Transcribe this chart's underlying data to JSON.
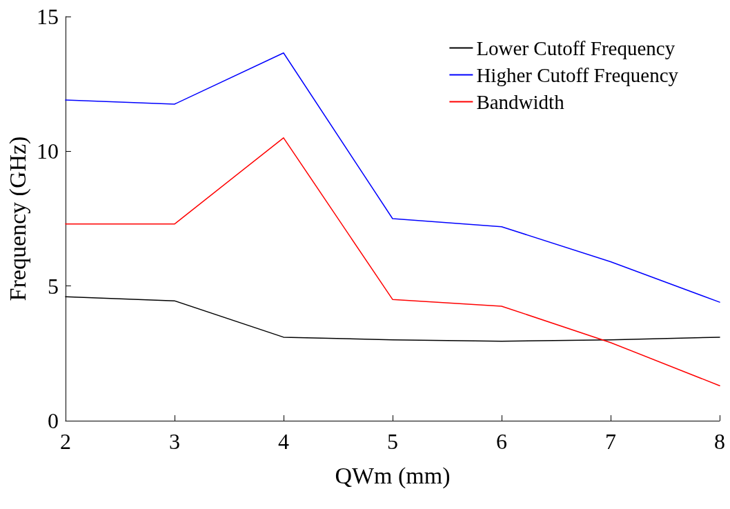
{
  "chart_data": {
    "type": "line",
    "xlabel": "QWm (mm)",
    "ylabel": "Frequency (GHz)",
    "x": [
      2,
      3,
      4,
      5,
      6,
      7,
      8
    ],
    "series": [
      {
        "name": "Lower Cutoff Frequency",
        "color": "#000000",
        "values": [
          4.6,
          4.45,
          3.1,
          3.0,
          2.95,
          3.0,
          3.1
        ]
      },
      {
        "name": "Higher Cutoff Frequency",
        "color": "#0000ff",
        "values": [
          11.9,
          11.75,
          13.65,
          7.5,
          7.2,
          5.9,
          4.4
        ]
      },
      {
        "name": "Bandwidth",
        "color": "#ff0000",
        "values": [
          7.3,
          7.3,
          10.5,
          4.5,
          4.25,
          2.9,
          1.3
        ]
      }
    ],
    "xlim": [
      2,
      8
    ],
    "xticks": [
      2,
      3,
      4,
      5,
      6,
      7,
      8
    ],
    "ylim": [
      0,
      15
    ],
    "yticks": [
      0,
      5,
      10,
      15
    ],
    "grid": false,
    "legend": "top right",
    "marker": "none",
    "line_style": "solid"
  }
}
